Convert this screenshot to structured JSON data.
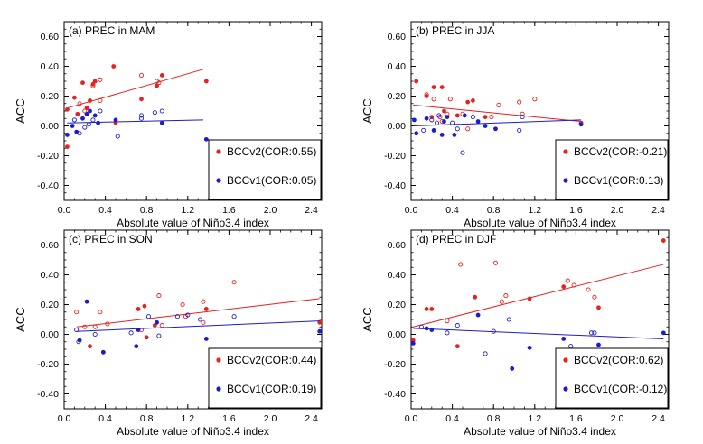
{
  "colors": {
    "bccv2": "#e8201e",
    "bccv1": "#1c1ccc"
  },
  "chart_data": [
    {
      "type": "scatter",
      "title": "(a) PREC in MAM",
      "xlabel": "Absolute value of Niño3.4 index",
      "ylabel": "ACC",
      "xlim": [
        0,
        2.5
      ],
      "ylim": [
        -0.5,
        0.7
      ],
      "xticks": [
        0,
        0.4,
        0.8,
        1.2,
        1.6,
        2,
        2.4
      ],
      "xtick_labels": [
        "0.0",
        "0.4",
        "0.8",
        "1.2",
        "1.6",
        "2.0",
        "2.4"
      ],
      "yticks": [
        -0.4,
        -0.2,
        0,
        0.2,
        0.4,
        0.6
      ],
      "ytick_labels": [
        "-0.40",
        "-0.20",
        "0.00",
        "0.20",
        "0.40",
        "0.60"
      ],
      "legend_position": "bottom-right",
      "series": [
        {
          "name": "BCCv2(COR:0.55)",
          "color": "#e8201e",
          "filled": [
            [
              0.03,
              0.11
            ],
            [
              0.03,
              -0.14
            ],
            [
              0.1,
              0.19
            ],
            [
              0.13,
              0.08
            ],
            [
              0.18,
              0.29
            ],
            [
              0.22,
              0.12
            ],
            [
              0.25,
              0.17
            ],
            [
              0.28,
              0.28
            ],
            [
              0.3,
              0.3
            ],
            [
              0.48,
              0.4
            ],
            [
              0.5,
              0.02
            ],
            [
              0.75,
              0.18
            ],
            [
              0.9,
              0.27
            ],
            [
              0.95,
              0.34
            ],
            [
              1.38,
              0.3
            ]
          ],
          "hollow": [
            [
              0.15,
              0.15
            ],
            [
              0.2,
              0.1
            ],
            [
              0.28,
              0.27
            ],
            [
              0.35,
              0.31
            ],
            [
              0.35,
              0.17
            ],
            [
              0.75,
              0.34
            ],
            [
              0.9,
              0.3
            ],
            [
              0.92,
              0.29
            ]
          ],
          "fit": [
            [
              0.03,
              0.12
            ],
            [
              1.35,
              0.38
            ]
          ]
        },
        {
          "name": "BCCv1(COR:0.05)",
          "color": "#1c1ccc",
          "filled": [
            [
              0.03,
              -0.06
            ],
            [
              0.08,
              0.0
            ],
            [
              0.12,
              -0.04
            ],
            [
              0.18,
              0.05
            ],
            [
              0.22,
              0.08
            ],
            [
              0.25,
              0.1
            ],
            [
              0.3,
              0.07
            ],
            [
              0.33,
              0.02
            ],
            [
              0.5,
              0.04
            ],
            [
              0.95,
              0.02
            ],
            [
              1.38,
              -0.09
            ]
          ],
          "hollow": [
            [
              0.1,
              0.04
            ],
            [
              0.15,
              -0.05
            ],
            [
              0.2,
              -0.01
            ],
            [
              0.24,
              0.01
            ],
            [
              0.28,
              0.04
            ],
            [
              0.35,
              0.1
            ],
            [
              0.52,
              -0.07
            ],
            [
              0.75,
              0.07
            ],
            [
              0.75,
              0.05
            ],
            [
              0.88,
              0.09
            ],
            [
              0.95,
              0.1
            ]
          ],
          "fit": [
            [
              0.03,
              0.02
            ],
            [
              1.35,
              0.04
            ]
          ]
        }
      ]
    },
    {
      "type": "scatter",
      "title": "(b) PREC in JJA",
      "xlabel": "Absolute value of Niño3.4 index",
      "ylabel": "ACC",
      "xlim": [
        0,
        2.5
      ],
      "ylim": [
        -0.5,
        0.7
      ],
      "xticks": [
        0,
        0.4,
        0.8,
        1.2,
        1.6,
        2,
        2.4
      ],
      "xtick_labels": [
        "0.0",
        "0.4",
        "0.8",
        "1.2",
        "1.6",
        "2.0",
        "2.4"
      ],
      "yticks": [
        -0.4,
        -0.2,
        0,
        0.2,
        0.4,
        0.6
      ],
      "ytick_labels": [
        "-0.40",
        "-0.20",
        "0.00",
        "0.20",
        "0.40",
        "0.60"
      ],
      "legend_position": "bottom-right",
      "series": [
        {
          "name": "BCCv2(COR:-0.21)",
          "color": "#e8201e",
          "filled": [
            [
              0.05,
              0.3
            ],
            [
              0.15,
              0.2
            ],
            [
              0.2,
              0.06
            ],
            [
              0.22,
              0.26
            ],
            [
              0.3,
              0.26
            ],
            [
              0.32,
              0.1
            ],
            [
              0.45,
              0.07
            ],
            [
              0.55,
              0.16
            ],
            [
              0.6,
              0.17
            ],
            [
              0.72,
              0.06
            ],
            [
              1.65,
              0.02
            ]
          ],
          "hollow": [
            [
              0.15,
              0.21
            ],
            [
              0.22,
              0.18
            ],
            [
              0.28,
              0.06
            ],
            [
              0.3,
              0.03
            ],
            [
              0.35,
              0.08
            ],
            [
              0.38,
              0.18
            ],
            [
              0.5,
              0.08
            ],
            [
              0.55,
              -0.02
            ],
            [
              0.78,
              0.06
            ],
            [
              0.85,
              0.14
            ],
            [
              1.05,
              0.16
            ],
            [
              1.2,
              0.18
            ],
            [
              1.08,
              0.08
            ]
          ],
          "fit": [
            [
              0.02,
              0.14
            ],
            [
              1.65,
              0.03
            ]
          ]
        },
        {
          "name": "BCCv1(COR:0.13)",
          "color": "#1c1ccc",
          "filled": [
            [
              0.03,
              0.04
            ],
            [
              0.05,
              -0.05
            ],
            [
              0.15,
              0.05
            ],
            [
              0.22,
              -0.03
            ],
            [
              0.3,
              -0.06
            ],
            [
              0.32,
              0.03
            ],
            [
              0.35,
              0.06
            ],
            [
              0.42,
              -0.06
            ],
            [
              0.52,
              0.07
            ],
            [
              0.65,
              0.03
            ],
            [
              0.72,
              0.0
            ],
            [
              0.82,
              -0.02
            ],
            [
              1.65,
              0.01
            ]
          ],
          "hollow": [
            [
              0.12,
              -0.03
            ],
            [
              0.2,
              0.04
            ],
            [
              0.25,
              0.02
            ],
            [
              0.27,
              0.07
            ],
            [
              0.4,
              0.02
            ],
            [
              0.45,
              -0.02
            ],
            [
              0.5,
              -0.18
            ],
            [
              0.6,
              0.06
            ],
            [
              1.05,
              -0.03
            ],
            [
              1.08,
              0.06
            ]
          ],
          "fit": [
            [
              0.02,
              0.0
            ],
            [
              1.65,
              0.04
            ]
          ]
        }
      ]
    },
    {
      "type": "scatter",
      "title": "(c) PREC in SON",
      "xlabel": "Absolute value of Niño3.4 index",
      "ylabel": "ACC",
      "xlim": [
        0,
        2.5
      ],
      "ylim": [
        -0.5,
        0.7
      ],
      "xticks": [
        0,
        0.4,
        0.8,
        1.2,
        1.6,
        2,
        2.4
      ],
      "xtick_labels": [
        "0.0",
        "0.4",
        "0.8",
        "1.2",
        "1.6",
        "2.0",
        "2.4"
      ],
      "yticks": [
        -0.4,
        -0.2,
        0,
        0.2,
        0.4,
        0.6
      ],
      "ytick_labels": [
        "-0.40",
        "-0.20",
        "0.00",
        "0.20",
        "0.40",
        "0.60"
      ],
      "legend_position": "bottom-right",
      "series": [
        {
          "name": "BCCv2(COR:0.44)",
          "color": "#e8201e",
          "filled": [
            [
              0.25,
              -0.08
            ],
            [
              0.38,
              -0.12
            ],
            [
              0.72,
              0.17
            ],
            [
              0.78,
              0.19
            ],
            [
              0.8,
              -0.02
            ],
            [
              0.88,
              0.06
            ],
            [
              1.38,
              0.17
            ],
            [
              2.48,
              0.08
            ]
          ],
          "hollow": [
            [
              0.12,
              0.15
            ],
            [
              0.2,
              0.05
            ],
            [
              0.3,
              0.05
            ],
            [
              0.35,
              0.15
            ],
            [
              0.42,
              0.07
            ],
            [
              0.75,
              0.03
            ],
            [
              0.92,
              0.26
            ],
            [
              0.95,
              0.06
            ],
            [
              1.15,
              0.2
            ],
            [
              1.18,
              0.12
            ],
            [
              1.35,
              0.22
            ],
            [
              1.35,
              0.08
            ],
            [
              1.65,
              0.35
            ]
          ],
          "fit": [
            [
              0.12,
              0.05
            ],
            [
              2.48,
              0.24
            ]
          ]
        },
        {
          "name": "BCCv1(COR:0.19)",
          "color": "#1c1ccc",
          "filled": [
            [
              0.15,
              -0.04
            ],
            [
              0.22,
              0.22
            ],
            [
              0.38,
              -0.12
            ],
            [
              0.7,
              -0.08
            ],
            [
              0.72,
              0.03
            ],
            [
              0.9,
              0.08
            ],
            [
              1.38,
              -0.03
            ],
            [
              2.48,
              0.02
            ]
          ],
          "hollow": [
            [
              0.12,
              0.03
            ],
            [
              0.14,
              -0.05
            ],
            [
              0.3,
              0.0
            ],
            [
              0.65,
              0.01
            ],
            [
              0.82,
              0.12
            ],
            [
              0.92,
              -0.01
            ],
            [
              1.1,
              0.12
            ],
            [
              1.2,
              0.13
            ],
            [
              1.32,
              0.1
            ],
            [
              1.65,
              0.12
            ]
          ],
          "fit": [
            [
              0.12,
              0.02
            ],
            [
              2.48,
              0.09
            ]
          ]
        }
      ]
    },
    {
      "type": "scatter",
      "title": "(d) PREC in DJF",
      "xlabel": "Absolute value of Niño3.4 index",
      "ylabel": "ACC",
      "xlim": [
        0,
        2.5
      ],
      "ylim": [
        -0.5,
        0.7
      ],
      "xticks": [
        0,
        0.4,
        0.8,
        1.2,
        1.6,
        2,
        2.4
      ],
      "xtick_labels": [
        "0.0",
        "0.4",
        "0.8",
        "1.2",
        "1.6",
        "2.0",
        "2.4"
      ],
      "yticks": [
        -0.4,
        -0.2,
        0,
        0.2,
        0.4,
        0.6
      ],
      "ytick_labels": [
        "-0.40",
        "-0.20",
        "0.00",
        "0.20",
        "0.40",
        "0.60"
      ],
      "legend_position": "bottom-right",
      "series": [
        {
          "name": "BCCv2(COR:0.62)",
          "color": "#e8201e",
          "filled": [
            [
              0.02,
              -0.04
            ],
            [
              0.15,
              0.17
            ],
            [
              0.2,
              0.17
            ],
            [
              0.45,
              -0.08
            ],
            [
              0.62,
              0.25
            ],
            [
              1.15,
              0.24
            ],
            [
              1.48,
              0.32
            ],
            [
              1.82,
              0.18
            ],
            [
              2.45,
              0.63
            ]
          ],
          "hollow": [
            [
              0.35,
              0.09
            ],
            [
              0.48,
              0.47
            ],
            [
              0.82,
              0.48
            ],
            [
              0.88,
              0.22
            ],
            [
              0.92,
              0.26
            ],
            [
              1.52,
              0.36
            ],
            [
              1.58,
              0.33
            ],
            [
              1.72,
              0.3
            ],
            [
              1.78,
              0.25
            ]
          ],
          "fit": [
            [
              0.02,
              0.05
            ],
            [
              2.45,
              0.47
            ]
          ]
        },
        {
          "name": "BCCv1(COR:-0.12)",
          "color": "#1c1ccc",
          "filled": [
            [
              0.02,
              -0.06
            ],
            [
              0.15,
              0.04
            ],
            [
              0.2,
              0.03
            ],
            [
              0.65,
              0.13
            ],
            [
              0.98,
              -0.23
            ],
            [
              1.15,
              -0.09
            ],
            [
              1.48,
              -0.03
            ],
            [
              1.82,
              -0.07
            ],
            [
              2.45,
              0.01
            ]
          ],
          "hollow": [
            [
              0.1,
              0.05
            ],
            [
              0.35,
              0.01
            ],
            [
              0.45,
              0.06
            ],
            [
              0.72,
              -0.13
            ],
            [
              0.8,
              0.02
            ],
            [
              0.95,
              0.1
            ],
            [
              1.55,
              -0.08
            ],
            [
              1.75,
              0.01
            ],
            [
              1.78,
              0.01
            ]
          ],
          "fit": [
            [
              0.02,
              0.04
            ],
            [
              2.45,
              -0.03
            ]
          ]
        }
      ]
    }
  ]
}
